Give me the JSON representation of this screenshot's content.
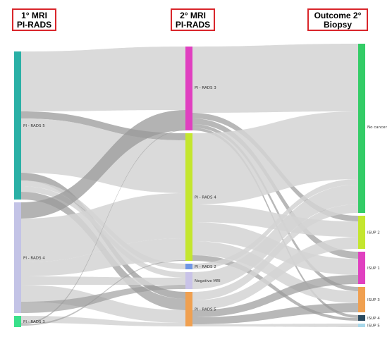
{
  "headers": {
    "col1": {
      "line1": "1° MRI",
      "line2": "PI-RADS"
    },
    "col2": {
      "line1": "2° MRI",
      "line2": "PI-RADS"
    },
    "col3": {
      "line1": "Outcome 2°",
      "line2": "Biopsy"
    }
  },
  "nodes": {
    "first": [
      {
        "id": "m1_pi5",
        "label": "PI - RADS 5",
        "color": "#2ab0a6"
      },
      {
        "id": "m1_pi4",
        "label": "PI - RADS 4",
        "color": "#c3c3e6"
      },
      {
        "id": "m1_pi3",
        "label": "PI - RADS 3",
        "color": "#39e08a"
      }
    ],
    "second": [
      {
        "id": "m2_pi3",
        "label": "PI - RADS 3",
        "color": "#e040c0"
      },
      {
        "id": "m2_pi4",
        "label": "PI - RADS 4",
        "color": "#c4e62e"
      },
      {
        "id": "m2_pi2",
        "label": "PI - RADS 2",
        "color": "#6f96e6"
      },
      {
        "id": "m2_neg",
        "label": "Negative MRI",
        "color": "#c9c3e8"
      },
      {
        "id": "m2_pi5",
        "label": "PI - RADS 5",
        "color": "#f0a050"
      }
    ],
    "outcome": [
      {
        "id": "nocancer",
        "label": "No cancer",
        "color": "#33cc66"
      },
      {
        "id": "isup2",
        "label": "ISUP 2",
        "color": "#c4e62e"
      },
      {
        "id": "isup1",
        "label": "ISUP 1",
        "color": "#e040c0"
      },
      {
        "id": "isup3",
        "label": "ISUP 3",
        "color": "#f0a050"
      },
      {
        "id": "isup4",
        "label": "ISUP 4",
        "color": "#2a4a60"
      },
      {
        "id": "isup5",
        "label": "ISUP 5",
        "color": "#a8d8ea"
      }
    ]
  },
  "colors": {
    "link_light": "#d3d3d3",
    "link_dark": "#9a9a9a",
    "header_border": "#d9262b"
  }
}
